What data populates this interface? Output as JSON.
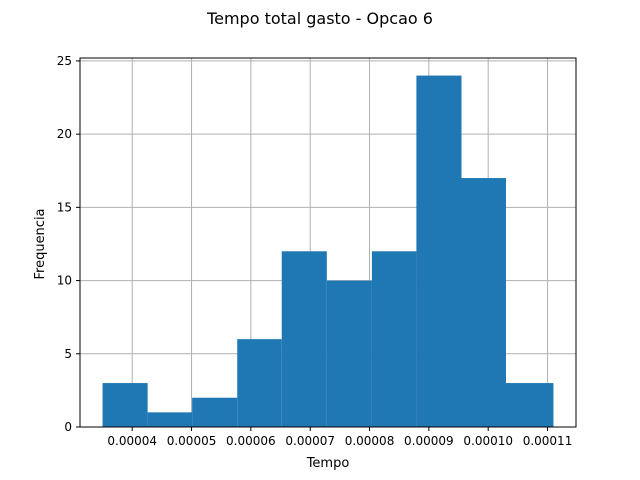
{
  "chart_data": {
    "type": "bar",
    "title": "Tempo total gasto - Opcao 6",
    "xlabel": "Tempo",
    "ylabel": "Frequencia",
    "bin_edges": [
      3.5e-05,
      4.26e-05,
      5.01e-05,
      5.77e-05,
      6.52e-05,
      7.28e-05,
      8.04e-05,
      8.79e-05,
      9.55e-05,
      0.000103,
      0.000111
    ],
    "values": [
      3,
      1,
      2,
      6,
      12,
      10,
      12,
      24,
      17,
      3
    ],
    "xlim": [
      3.12e-05,
      0.0001148
    ],
    "ylim": [
      0,
      25.2
    ],
    "xticks": [
      4e-05,
      5e-05,
      6e-05,
      7e-05,
      8e-05,
      9e-05,
      0.0001,
      0.00011
    ],
    "xtick_labels": [
      "0.00004",
      "0.00005",
      "0.00006",
      "0.00007",
      "0.00008",
      "0.00009",
      "0.00010",
      "0.00011"
    ],
    "yticks": [
      0,
      5,
      10,
      15,
      20,
      25
    ],
    "ytick_labels": [
      "0",
      "5",
      "10",
      "15",
      "20",
      "25"
    ],
    "grid": true,
    "bar_color": "#1f77b4",
    "grid_color": "#b0b0b0"
  }
}
